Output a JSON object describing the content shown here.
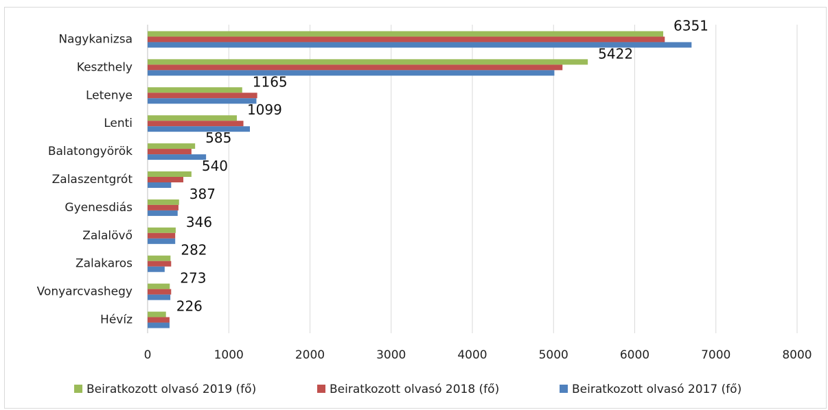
{
  "chart_data": {
    "type": "bar",
    "orientation": "horizontal",
    "categories": [
      "Nagykanizsa",
      "Keszthely",
      "Letenye",
      "Lenti",
      "Balatongyörök",
      "Zalaszentgrót",
      "Gyenesdiás",
      "Zalalövő",
      "Zalakaros",
      "Vonyarcvashegy",
      "Hévíz"
    ],
    "series": [
      {
        "name": "Beiratkozott olvasó 2019 (fő)",
        "color": "#9bbb59",
        "values": [
          6351,
          5422,
          1165,
          1099,
          585,
          540,
          387,
          346,
          282,
          273,
          226
        ]
      },
      {
        "name": "Beiratkozott olvasó 2018 (fő)",
        "color": "#c0504d",
        "values": [
          6370,
          5110,
          1350,
          1180,
          540,
          440,
          380,
          340,
          290,
          290,
          270
        ]
      },
      {
        "name": "Beiratkozott olvasó 2017 (fő)",
        "color": "#4f81bd",
        "values": [
          6700,
          5010,
          1340,
          1260,
          720,
          290,
          370,
          340,
          210,
          280,
          270
        ]
      }
    ],
    "data_labels": [
      "6351",
      "5422",
      "1165",
      "1099",
      "585",
      "540",
      "387",
      "346",
      "282",
      "273",
      "226"
    ],
    "xlim": [
      0,
      8000
    ],
    "xticks": [
      "0",
      "1000",
      "2000",
      "3000",
      "4000",
      "5000",
      "6000",
      "7000",
      "8000"
    ],
    "grid": true,
    "legend_position": "bottom"
  }
}
